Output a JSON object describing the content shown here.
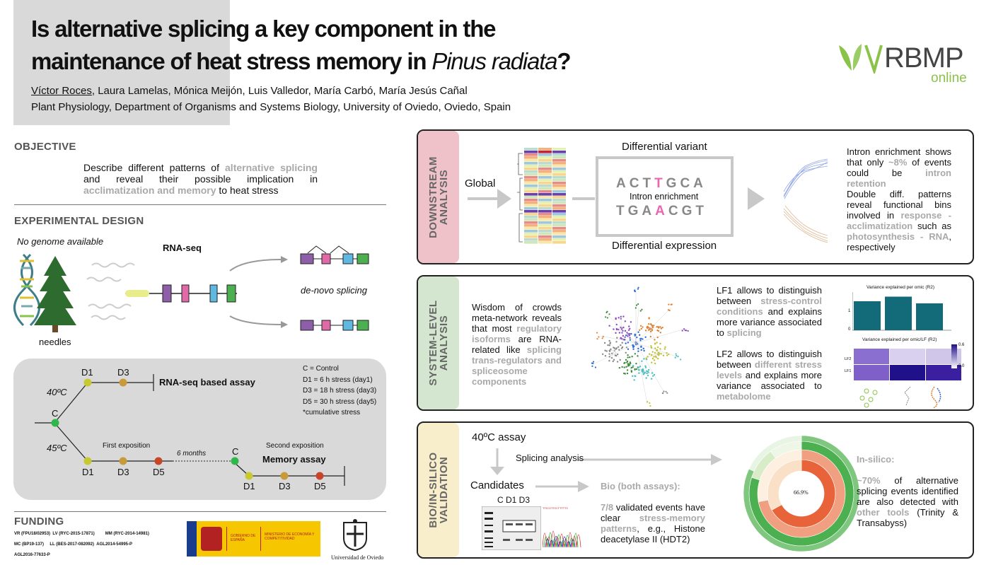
{
  "header": {
    "title_line1": "Is alternative splicing a key component in the",
    "title_line2_prefix": "maintenance of heat stress memory in ",
    "title_italic": "Pinus radiata",
    "title_suffix": "?",
    "first_author": "Víctor Roces",
    "other_authors": ", Laura Lamelas, Mónica Meijón, Luis Valledor, María Carbó, María Jesús Cañal",
    "affiliation": "Plant Physiology, Department of Organisms and Systems Biology, University of Oviedo, Oviedo, Spain",
    "logo_main": "RBMP",
    "logo_sub": "online"
  },
  "objective": {
    "heading": "OBJECTIVE",
    "t1": "Describe different patterns of ",
    "h1": "alternative splicing",
    "t2": " and reveal their possible implication in ",
    "h2": "acclimatization and memory",
    "t3": " to heat stress"
  },
  "design": {
    "heading": "EXPERIMENTAL DESIGN",
    "no_genome": "No genome available",
    "needles": "needles",
    "rnaseq": "RNA-seq",
    "denovo": "de-novo splicing"
  },
  "assay": {
    "d1_top": "D1",
    "d3_top": "D3",
    "temp40": "40ºC",
    "c_label": "C",
    "temp45": "45ºC",
    "rnaseq_assay": "RNA-seq based assay",
    "first_expo": "First exposition",
    "six_months": "6 months",
    "c2": "C",
    "second_expo": "Second exposition",
    "memory_assay": "Memory assay",
    "b_d1": "D1",
    "b_d3": "D3",
    "b_d5": "D5",
    "m_d1": "D1",
    "m_d3": "D3",
    "m_d5": "D5",
    "legend": [
      "C   = Control",
      "D1 =    6 h stress (day1)",
      "D3 = 18 h stress (day3)",
      "D5 = 30 h stress (day5)",
      "*cumulative stress"
    ]
  },
  "funding": {
    "heading": "FUNDING",
    "grants": [
      "VR (FPU18/02953)",
      "LV (RYC-2015-17871)",
      "MM (RYC-2014-14981)",
      "MC (BP19-137)",
      "LL (BES-2017-082092)",
      "AGL2014-54995-P",
      "AGL2016-77633-P"
    ],
    "gov": "GOBIERNO DE ESPAÑA",
    "ministry": "MINISTERIO DE ECONOMÍA Y COMPETITIVIDAD",
    "univ": "Universidad de Oviedo"
  },
  "downstream": {
    "tab_l1": "DOWNSTREAM",
    "tab_l2": "ANALYSIS",
    "global": "Global",
    "diff_variant": "Differential variant",
    "seq1_a": "ACT",
    "seq1_b": "T",
    "seq1_c": "GCA",
    "intron": "Intron enrichment",
    "seq2_a": "TGA",
    "seq2_b": "A",
    "seq2_c": "CGT",
    "diff_expr": "Differential expression",
    "p1_a": "Intron enrichment shows that only ",
    "p1_h": "~8%",
    "p1_b": " of events could be ",
    "p1_h2": "intron retention",
    "p2_a": "Double diff. patterns reveal functional bins involved in ",
    "p2_h1": "response - acclimatization",
    "p2_b": " such as ",
    "p2_h2": "photosynthesis - RNA",
    "p2_c": ", respectively"
  },
  "system": {
    "tab_l1": "SYSTEM-LEVEL",
    "tab_l2": "ANALYSIS",
    "p_a": "Wisdom of crowds meta-network reveals that most ",
    "p_h1": "regulatory isoforms",
    "p_b": " are RNA-related like ",
    "p_h2": "splicing trans-regulators and spliceosome components",
    "lf1_a": "LF1 allows to distinguish between ",
    "lf1_h1": "stress-control conditions",
    "lf1_b": " and explains more variance associated to ",
    "lf1_h2": "splicing",
    "lf2_a": "LF2 allows to distinguish between ",
    "lf2_h1": "different stress levels",
    "lf2_b": " and explains more variance associated to ",
    "lf2_h2": "metabolome",
    "bar_title": "Variance explained per omic (R2)",
    "heat_title": "Variance explained per omic/LF (R2)",
    "y1": "1",
    "y0": "0",
    "lf2": "LF2",
    "lf1": "LF1",
    "scale_hi": "0.6",
    "scale_lo": "0.0"
  },
  "bio": {
    "tab_l1": "BIO/IN-SILICO",
    "tab_l2": "VALIDATION",
    "assay40": "40ºC assay",
    "splicing": "Splicing analysis",
    "candidates": "Candidates",
    "cols": "C  D1 D3",
    "bio_head": "Bio (both assays):",
    "bio_a": "7/8",
    "bio_b": " validated events have clear ",
    "bio_h": "stress-memory patterns",
    "bio_c": ", e.g., Histone deacetylase II (HDT2)",
    "pct": "66.9%",
    "insilico_head": "In-silico:",
    "ins_a": "~70%",
    "ins_b": " of alternative splicing events identified are also detected with ",
    "ins_h": "other tools",
    "ins_c": " (Trinity & Transabyss)"
  },
  "chart_data": {
    "type": "bar",
    "title": "Variance explained per omic (R2)",
    "categories": [
      "",
      "",
      ""
    ],
    "values": [
      0.82,
      0.95,
      0.76
    ],
    "ylim": [
      0,
      1
    ]
  }
}
